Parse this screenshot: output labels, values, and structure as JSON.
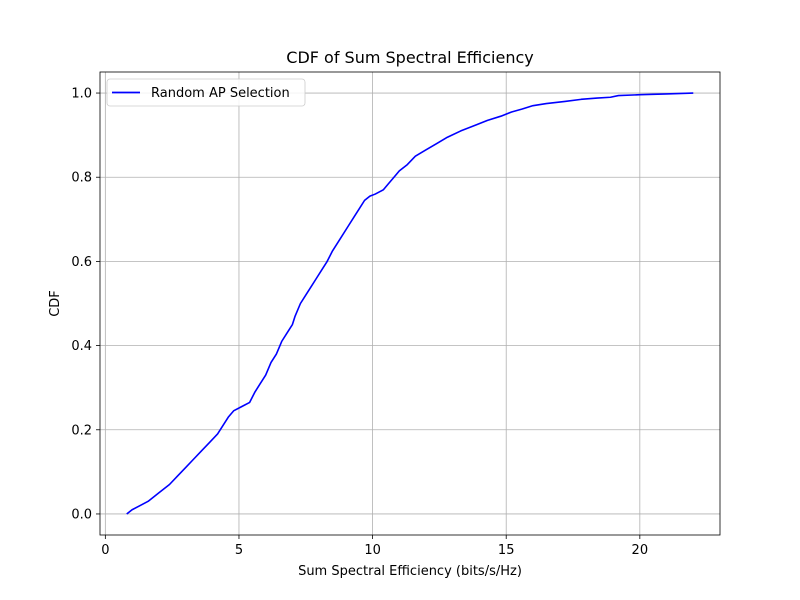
{
  "chart_data": {
    "type": "line",
    "title": "CDF of Sum Spectral Efficiency",
    "xlabel": "Sum Spectral Efficiency (bits/s/Hz)",
    "ylabel": "CDF",
    "xlim": [
      -0.2,
      23.0
    ],
    "ylim": [
      -0.05,
      1.05
    ],
    "xticks": [
      0,
      5,
      10,
      15,
      20
    ],
    "xtick_labels": [
      "0",
      "5",
      "10",
      "15",
      "20"
    ],
    "yticks": [
      0.0,
      0.2,
      0.4,
      0.6,
      0.8,
      1.0
    ],
    "ytick_labels": [
      "0.0",
      "0.2",
      "0.4",
      "0.6",
      "0.8",
      "1.0"
    ],
    "grid": true,
    "legend_position": "top-left",
    "series": [
      {
        "name": "Random AP Selection",
        "color": "#0000ff",
        "x": [
          0.8,
          1.0,
          1.3,
          1.6,
          1.8,
          2.0,
          2.4,
          2.7,
          3.0,
          3.3,
          3.6,
          3.9,
          4.2,
          4.4,
          4.6,
          4.8,
          5.1,
          5.4,
          5.6,
          5.8,
          6.0,
          6.2,
          6.4,
          6.6,
          6.8,
          7.0,
          7.1,
          7.3,
          7.5,
          7.7,
          7.9,
          8.1,
          8.3,
          8.5,
          8.8,
          9.1,
          9.3,
          9.5,
          9.7,
          9.9,
          10.1,
          10.4,
          10.6,
          10.8,
          11.0,
          11.3,
          11.6,
          12.0,
          12.4,
          12.8,
          13.3,
          13.9,
          14.3,
          14.8,
          15.2,
          15.6,
          16.0,
          16.5,
          17.2,
          17.8,
          18.4,
          18.9,
          19.2,
          20.0,
          21.0,
          22.0
        ],
        "y": [
          0.0,
          0.01,
          0.02,
          0.03,
          0.04,
          0.05,
          0.07,
          0.09,
          0.11,
          0.13,
          0.15,
          0.17,
          0.19,
          0.21,
          0.23,
          0.245,
          0.255,
          0.265,
          0.29,
          0.31,
          0.33,
          0.36,
          0.38,
          0.41,
          0.43,
          0.45,
          0.47,
          0.5,
          0.52,
          0.54,
          0.56,
          0.58,
          0.6,
          0.625,
          0.655,
          0.685,
          0.705,
          0.725,
          0.745,
          0.755,
          0.76,
          0.77,
          0.785,
          0.8,
          0.815,
          0.83,
          0.85,
          0.865,
          0.88,
          0.895,
          0.91,
          0.925,
          0.935,
          0.945,
          0.955,
          0.962,
          0.97,
          0.975,
          0.98,
          0.985,
          0.988,
          0.99,
          0.994,
          0.996,
          0.998,
          1.0
        ]
      }
    ]
  }
}
